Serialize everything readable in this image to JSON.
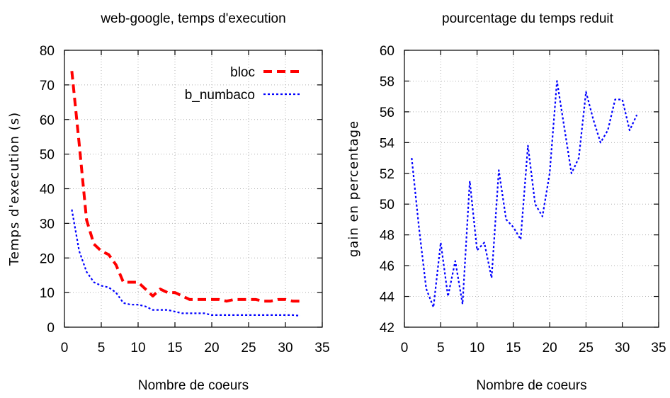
{
  "chart_data": [
    {
      "type": "line",
      "title": "web-google, temps d'execution",
      "xlabel": "Nombre de coeurs",
      "ylabel": "Temps d'execution (s)",
      "xlim": [
        0,
        35
      ],
      "ylim": [
        0,
        80
      ],
      "xticks": [
        0,
        5,
        10,
        15,
        20,
        25,
        30,
        35
      ],
      "yticks": [
        0,
        10,
        20,
        30,
        40,
        50,
        60,
        70,
        80
      ],
      "grid": true,
      "legend": "top-right",
      "series": [
        {
          "name": "bloc",
          "color": "#ff0000",
          "style": "dashed",
          "x": [
            1,
            2,
            3,
            4,
            5,
            6,
            7,
            8,
            9,
            10,
            11,
            12,
            13,
            14,
            15,
            16,
            17,
            18,
            19,
            20,
            21,
            22,
            23,
            24,
            25,
            26,
            27,
            28,
            29,
            30,
            31,
            32
          ],
          "y": [
            74,
            53,
            31,
            24,
            22,
            21,
            18,
            13,
            13,
            13,
            11,
            9,
            11,
            10,
            10,
            9,
            8,
            8,
            8,
            8,
            8,
            7.5,
            8,
            8,
            8,
            8,
            7.5,
            7.5,
            8,
            8,
            7.5,
            7.5
          ]
        },
        {
          "name": "b_numbaco",
          "color": "#0000ff",
          "style": "dotted",
          "x": [
            1,
            2,
            3,
            4,
            5,
            6,
            7,
            8,
            9,
            10,
            11,
            12,
            13,
            14,
            15,
            16,
            17,
            18,
            19,
            20,
            21,
            22,
            23,
            24,
            25,
            26,
            27,
            28,
            29,
            30,
            31,
            32
          ],
          "y": [
            34,
            22,
            16,
            13,
            12,
            11.5,
            10,
            7,
            6.5,
            6.5,
            6,
            5,
            5,
            5,
            4.5,
            4,
            4,
            4,
            4,
            3.5,
            3.5,
            3.5,
            3.5,
            3.5,
            3.5,
            3.5,
            3.5,
            3.5,
            3.5,
            3.5,
            3.5,
            3.3
          ]
        }
      ]
    },
    {
      "type": "line",
      "title": "pourcentage du temps reduit",
      "xlabel": "Nombre de coeurs",
      "ylabel": "gain en percentage",
      "xlim": [
        0,
        35
      ],
      "ylim": [
        42,
        60
      ],
      "xticks": [
        0,
        5,
        10,
        15,
        20,
        25,
        30,
        35
      ],
      "yticks": [
        42,
        44,
        46,
        48,
        50,
        52,
        54,
        56,
        58,
        60
      ],
      "grid": true,
      "series": [
        {
          "color": "#0000ff",
          "style": "dotted",
          "x": [
            1,
            2,
            3,
            4,
            5,
            6,
            7,
            8,
            9,
            10,
            11,
            12,
            13,
            14,
            15,
            16,
            17,
            18,
            19,
            20,
            21,
            22,
            23,
            24,
            25,
            26,
            27,
            28,
            29,
            30,
            31,
            32
          ],
          "y": [
            53,
            48.5,
            44.5,
            43.3,
            47.5,
            44,
            46.3,
            43.5,
            51.5,
            47,
            47.5,
            45.2,
            52.2,
            49,
            48.5,
            47.7,
            53.8,
            50,
            49.2,
            52,
            58,
            55,
            52,
            53,
            57.3,
            55.5,
            54,
            54.8,
            56.8,
            56.8,
            54.8,
            55.8
          ]
        }
      ]
    }
  ]
}
